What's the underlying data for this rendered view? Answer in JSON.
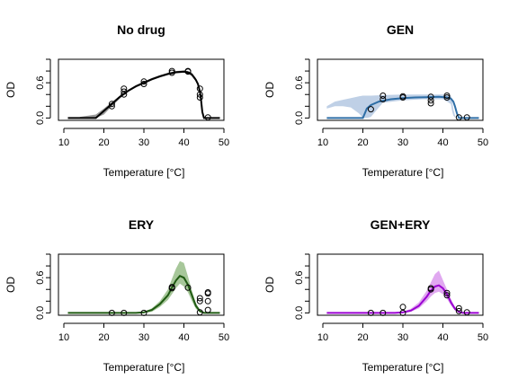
{
  "chart_data": [
    {
      "type": "line",
      "title": "No drug",
      "xlabel": "Temperature [°C]",
      "ylabel": "OD",
      "xlim": [
        10,
        50
      ],
      "ylim": [
        0,
        1.0
      ],
      "xticks": [
        "10",
        "20",
        "30",
        "40",
        "50"
      ],
      "yticks": [
        "0.0",
        "0.6"
      ],
      "color": "#000000",
      "band_color": "#999999",
      "curve_x": [
        11,
        18,
        20,
        22,
        24,
        26,
        28,
        30,
        32,
        34,
        36,
        38,
        40,
        41,
        42,
        43,
        43.5,
        44,
        44.3,
        44.6,
        45,
        49
      ],
      "curve_y": [
        0,
        0,
        0.12,
        0.24,
        0.36,
        0.46,
        0.54,
        0.6,
        0.66,
        0.71,
        0.75,
        0.78,
        0.79,
        0.78,
        0.74,
        0.65,
        0.58,
        0.45,
        0.3,
        0.1,
        0,
        0
      ],
      "band_x": [
        14,
        18,
        20,
        22,
        24,
        26,
        28,
        30,
        32,
        34,
        36,
        38,
        40,
        41,
        42,
        43,
        43.5,
        44,
        44.3,
        44.6,
        45
      ],
      "band_upper": [
        0.02,
        0.06,
        0.16,
        0.27,
        0.38,
        0.48,
        0.56,
        0.62,
        0.68,
        0.73,
        0.77,
        0.8,
        0.81,
        0.8,
        0.77,
        0.68,
        0.6,
        0.48,
        0.33,
        0.12,
        0
      ],
      "band_lower": [
        0,
        0,
        0.06,
        0.2,
        0.33,
        0.44,
        0.52,
        0.58,
        0.64,
        0.69,
        0.73,
        0.76,
        0.77,
        0.76,
        0.71,
        0.62,
        0.55,
        0.42,
        0.27,
        0.08,
        0
      ],
      "points": [
        [
          22,
          0.2
        ],
        [
          22,
          0.24
        ],
        [
          25,
          0.45
        ],
        [
          25,
          0.5
        ],
        [
          25,
          0.4
        ],
        [
          30,
          0.58
        ],
        [
          30,
          0.62
        ],
        [
          37,
          0.77
        ],
        [
          37,
          0.8
        ],
        [
          41,
          0.79
        ],
        [
          41,
          0.8
        ],
        [
          44,
          0.5
        ],
        [
          44,
          0.4
        ],
        [
          44,
          0.35
        ],
        [
          46,
          0.01
        ]
      ]
    },
    {
      "type": "line",
      "title": "GEN",
      "xlabel": "Temperature [°C]",
      "ylabel": "OD",
      "xlim": [
        10,
        50
      ],
      "ylim": [
        0,
        1.0
      ],
      "xticks": [
        "10",
        "20",
        "30",
        "40",
        "50"
      ],
      "yticks": [
        "0.0",
        "0.6"
      ],
      "color": "#2e6ea6",
      "band_color": "#bfd0e6",
      "curve_x": [
        11,
        20,
        20.5,
        21,
        22,
        24,
        27,
        30,
        33,
        36,
        39,
        41,
        42,
        42.6,
        43,
        43.5,
        44,
        49
      ],
      "curve_y": [
        0,
        0,
        0.08,
        0.16,
        0.22,
        0.28,
        0.32,
        0.34,
        0.35,
        0.355,
        0.36,
        0.35,
        0.33,
        0.28,
        0.2,
        0.08,
        0,
        0
      ],
      "band_x": [
        11,
        13,
        15,
        17,
        19,
        20,
        21,
        22,
        25,
        30,
        35,
        40,
        42,
        42.3,
        42.6,
        43.2
      ],
      "band_upper": [
        0.2,
        0.28,
        0.31,
        0.34,
        0.37,
        0.38,
        0.38,
        0.38,
        0.39,
        0.4,
        0.4,
        0.4,
        0.38,
        0.3,
        0.15,
        0
      ],
      "band_lower": [
        0.16,
        0.2,
        0.2,
        0.18,
        0.08,
        0,
        0,
        0.02,
        0.26,
        0.3,
        0.32,
        0.32,
        0.24,
        0.12,
        0.04,
        0
      ],
      "points": [
        [
          22,
          0.15
        ],
        [
          25,
          0.38
        ],
        [
          25,
          0.32
        ],
        [
          30,
          0.35
        ],
        [
          30,
          0.37
        ],
        [
          37,
          0.3
        ],
        [
          37,
          0.25
        ],
        [
          37,
          0.36
        ],
        [
          41,
          0.38
        ],
        [
          41,
          0.35
        ],
        [
          44,
          0.01
        ],
        [
          46,
          0.01
        ]
      ]
    },
    {
      "type": "line",
      "title": "ERY",
      "xlabel": "Temperature [°C]",
      "ylabel": "OD",
      "xlim": [
        10,
        50
      ],
      "ylim": [
        0,
        1.0
      ],
      "xticks": [
        "10",
        "20",
        "30",
        "40",
        "50"
      ],
      "yticks": [
        "0.0",
        "0.6"
      ],
      "color": "#1f5a12",
      "band_color": "#a7c79a",
      "curve_x": [
        11,
        28,
        30,
        32,
        34,
        36,
        37,
        38,
        39,
        40,
        41,
        42,
        43,
        44,
        45,
        46,
        49
      ],
      "curve_y": [
        0,
        0,
        0.01,
        0.05,
        0.15,
        0.3,
        0.43,
        0.55,
        0.63,
        0.6,
        0.48,
        0.3,
        0.12,
        0.03,
        0,
        0,
        0
      ],
      "band_x": [
        28,
        30,
        32,
        34,
        36,
        37,
        38,
        39,
        40,
        41,
        42,
        43,
        44,
        45
      ],
      "band_upper": [
        0,
        0.02,
        0.08,
        0.2,
        0.4,
        0.58,
        0.75,
        0.88,
        0.85,
        0.62,
        0.38,
        0.17,
        0.05,
        0
      ],
      "band_lower": [
        0,
        0,
        0.02,
        0.1,
        0.22,
        0.32,
        0.42,
        0.5,
        0.45,
        0.35,
        0.2,
        0.07,
        0.01,
        0
      ],
      "points": [
        [
          22,
          0
        ],
        [
          25,
          0
        ],
        [
          30,
          0
        ],
        [
          37,
          0.44
        ],
        [
          37,
          0.42
        ],
        [
          41,
          0.43
        ],
        [
          44,
          0.25
        ],
        [
          44,
          0.2
        ],
        [
          44,
          0.01
        ],
        [
          46,
          0.35
        ],
        [
          46,
          0.33
        ],
        [
          46,
          0.2
        ],
        [
          46,
          0.05
        ]
      ]
    },
    {
      "type": "line",
      "title": "GEN+ERY",
      "xlabel": "Temperature [°C]",
      "ylabel": "OD",
      "xlim": [
        10,
        50
      ],
      "ylim": [
        0,
        1.0
      ],
      "xticks": [
        "10",
        "20",
        "30",
        "40",
        "50"
      ],
      "yticks": [
        "0.0",
        "0.6"
      ],
      "color": "#9b00d3",
      "band_color": "#e0a8f0",
      "curve_x": [
        11,
        28,
        30,
        32,
        34,
        36,
        37,
        38,
        39,
        40,
        41,
        42,
        43,
        44,
        45,
        49
      ],
      "curve_y": [
        0,
        0,
        0.01,
        0.04,
        0.12,
        0.28,
        0.38,
        0.45,
        0.47,
        0.42,
        0.32,
        0.18,
        0.07,
        0.02,
        0,
        0
      ],
      "band_x": [
        28,
        30,
        32,
        34,
        36,
        37,
        38,
        39,
        40,
        41,
        42,
        43,
        44,
        45
      ],
      "band_upper": [
        0,
        0.02,
        0.07,
        0.18,
        0.38,
        0.52,
        0.66,
        0.72,
        0.56,
        0.4,
        0.24,
        0.1,
        0.03,
        0
      ],
      "band_lower": [
        0,
        0,
        0.02,
        0.08,
        0.2,
        0.28,
        0.34,
        0.36,
        0.32,
        0.24,
        0.13,
        0.04,
        0.01,
        0
      ],
      "points": [
        [
          22,
          0
        ],
        [
          25,
          0
        ],
        [
          30,
          0.1
        ],
        [
          30,
          0
        ],
        [
          37,
          0.42
        ],
        [
          37,
          0.4
        ],
        [
          41,
          0.3
        ],
        [
          41,
          0.34
        ],
        [
          44,
          0.08
        ],
        [
          44,
          0.03
        ],
        [
          46,
          0.01
        ]
      ]
    }
  ]
}
